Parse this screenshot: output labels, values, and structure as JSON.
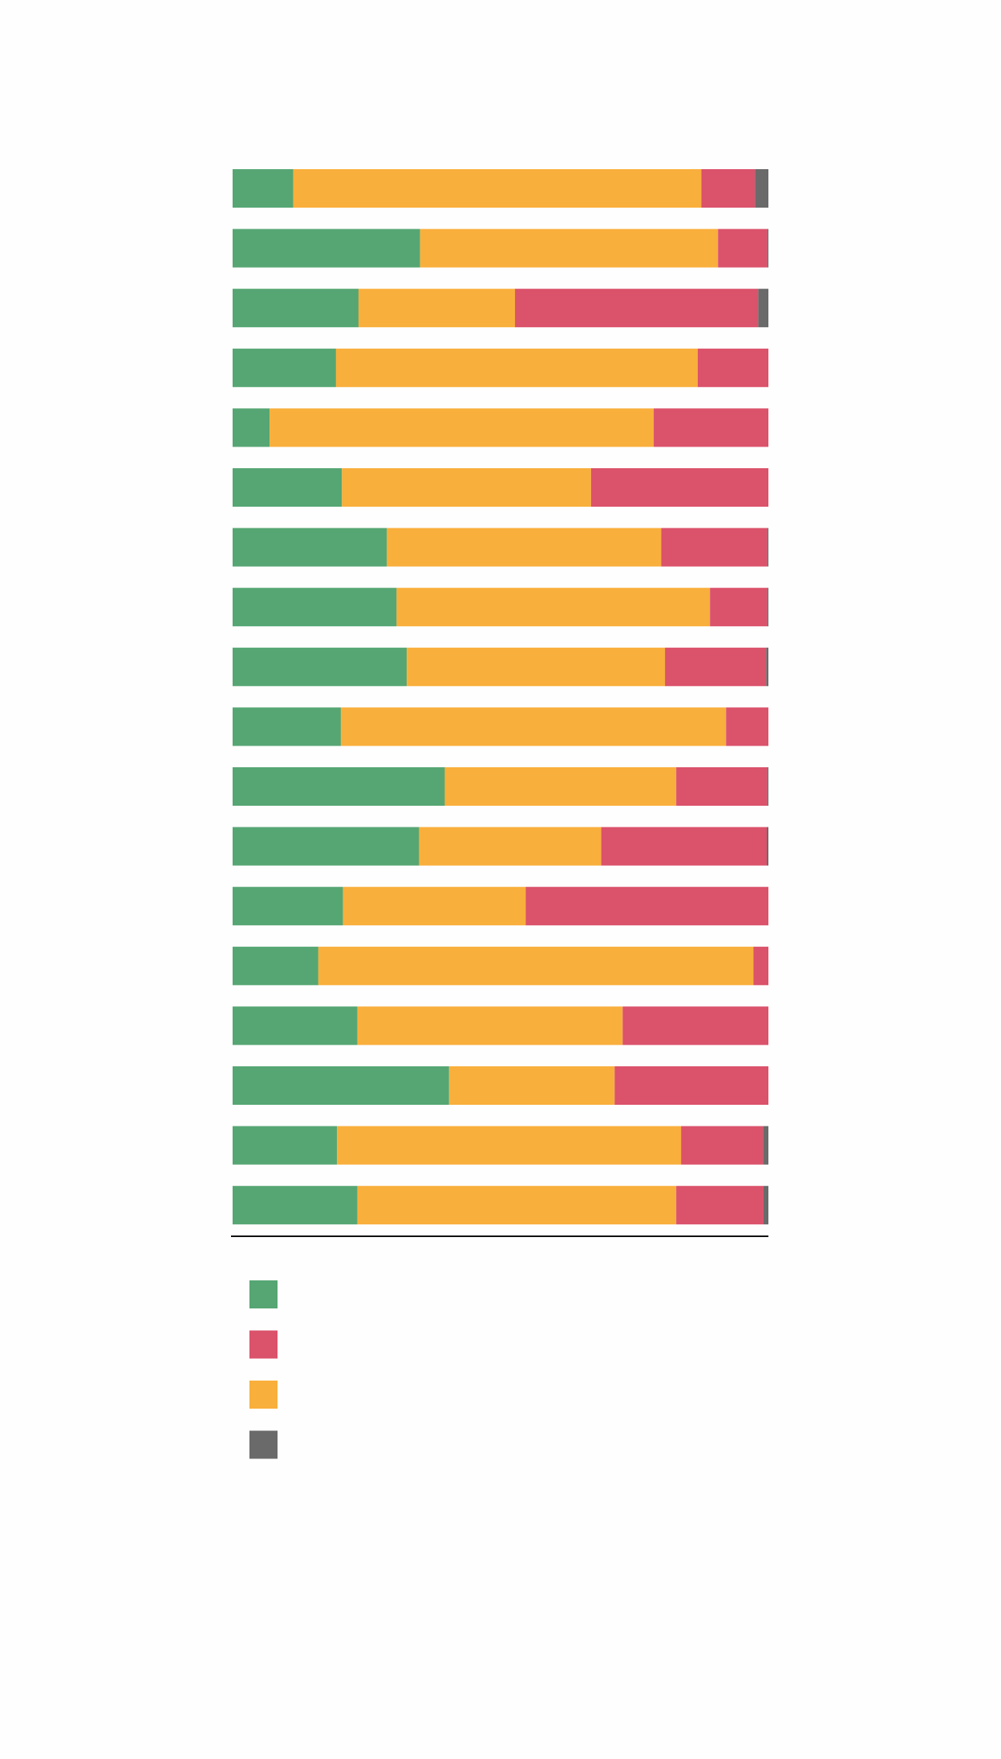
{
  "chart_data": {
    "type": "bar",
    "orientation": "horizontal",
    "stacked": true,
    "normalized": true,
    "title": "",
    "xlabel": "",
    "ylabel": "",
    "xlim": [
      0,
      1
    ],
    "categories": [
      "",
      "",
      "",
      "",
      "",
      "",
      "",
      "",
      "",
      "",
      "",
      "",
      "",
      "",
      "",
      "",
      "",
      ""
    ],
    "series": [
      {
        "color": "#56a673",
        "values": [
          0.113,
          0.35,
          0.235,
          0.193,
          0.069,
          0.204,
          0.288,
          0.306,
          0.325,
          0.202,
          0.396,
          0.348,
          0.206,
          0.16,
          0.233,
          0.404,
          0.195,
          0.233
        ]
      },
      {
        "color": "#f9af3c",
        "values": [
          0.762,
          0.556,
          0.292,
          0.675,
          0.717,
          0.465,
          0.512,
          0.585,
          0.482,
          0.719,
          0.432,
          0.34,
          0.341,
          0.812,
          0.495,
          0.309,
          0.642,
          0.595
        ]
      },
      {
        "color": "#db526b",
        "values": [
          0.1,
          0.092,
          0.454,
          0.132,
          0.214,
          0.331,
          0.198,
          0.107,
          0.189,
          0.079,
          0.17,
          0.309,
          0.453,
          0.028,
          0.272,
          0.287,
          0.153,
          0.163
        ]
      },
      {
        "color": "#6a6a6a",
        "values": [
          0.025,
          0.002,
          0.019,
          0.0,
          0.0,
          0.0,
          0.002,
          0.002,
          0.004,
          0.0,
          0.002,
          0.003,
          0.0,
          0.0,
          0.0,
          0.0,
          0.01,
          0.009
        ]
      }
    ],
    "legend": {
      "position": "bottom-left",
      "entries": [
        {
          "color": "#56a673"
        },
        {
          "color": "#db526b"
        },
        {
          "color": "#f9af3c"
        },
        {
          "color": "#6a6a6a"
        }
      ]
    },
    "grid": false
  }
}
